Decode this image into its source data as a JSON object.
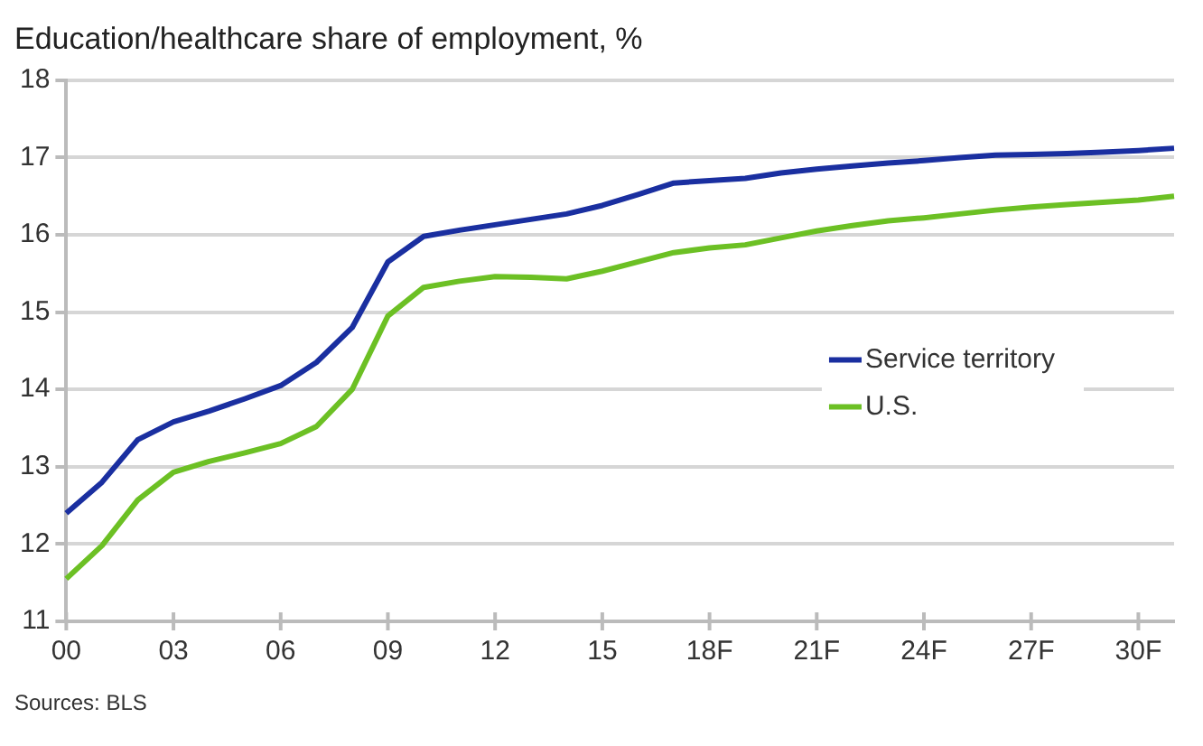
{
  "chart_data": {
    "type": "line",
    "title": "Education/healthcare share of employment, %",
    "categories": [
      "00",
      null,
      null,
      "03",
      null,
      null,
      "06",
      null,
      null,
      "09",
      null,
      null,
      "12",
      null,
      null,
      "15",
      null,
      null,
      "18F",
      null,
      null,
      "21F",
      null,
      null,
      "24F",
      null,
      null,
      "27F",
      null,
      null,
      "30F",
      null
    ],
    "series": [
      {
        "name": "Service territory",
        "color": "#1a2fa0",
        "values": [
          12.4,
          12.8,
          13.35,
          13.58,
          13.72,
          13.88,
          14.05,
          14.35,
          14.8,
          15.65,
          15.98,
          16.06,
          16.13,
          16.2,
          16.27,
          16.38,
          16.52,
          16.67,
          16.7,
          16.73,
          16.8,
          16.85,
          16.89,
          16.93,
          16.96,
          17.0,
          17.03,
          17.04,
          17.05,
          17.07,
          17.09,
          17.12
        ]
      },
      {
        "name": "U.S.",
        "color": "#6cc024",
        "values": [
          11.55,
          11.98,
          12.57,
          12.93,
          13.07,
          13.18,
          13.3,
          13.52,
          14.0,
          14.95,
          15.32,
          15.4,
          15.46,
          15.45,
          15.43,
          15.53,
          15.65,
          15.77,
          15.83,
          15.87,
          15.96,
          16.05,
          16.12,
          16.18,
          16.22,
          16.27,
          16.32,
          16.36,
          16.39,
          16.42,
          16.45,
          16.5
        ]
      }
    ],
    "ylim": [
      11,
      18
    ],
    "yticks": [
      11,
      12,
      13,
      14,
      15,
      16,
      17,
      18
    ],
    "grid": "y",
    "legend": "right",
    "marker": "none",
    "line_style": "solid",
    "annotations": [
      "Sources: BLS"
    ]
  }
}
